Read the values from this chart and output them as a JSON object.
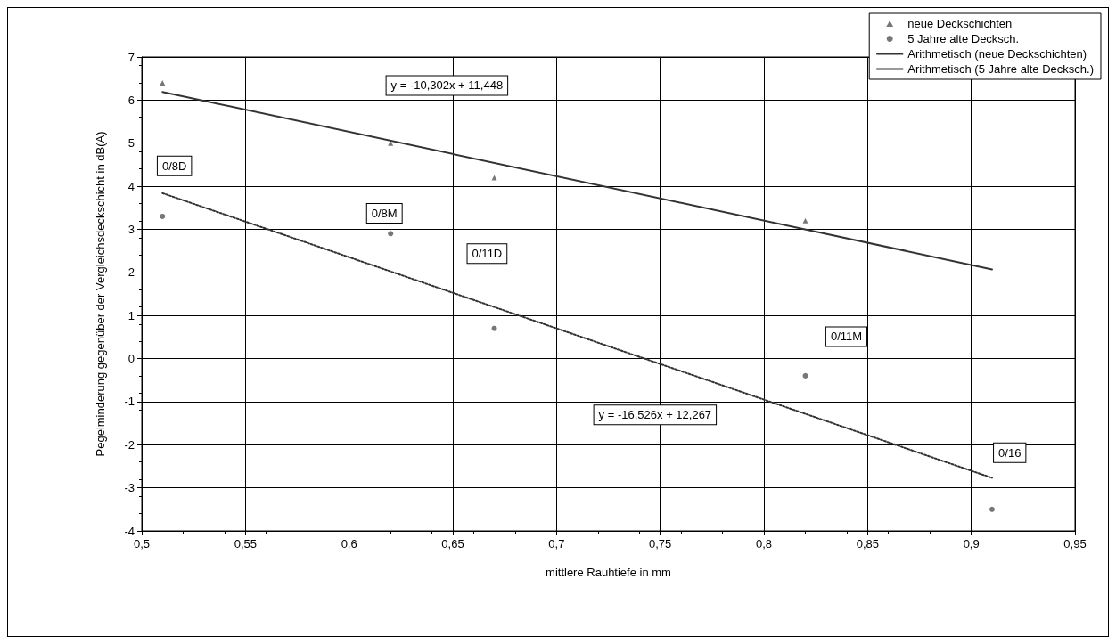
{
  "chart_data": {
    "type": "scatter",
    "xlabel": "mittlere Rauhtiefe in mm",
    "ylabel": "Pegelminderung gegenüber der Vergleichsdeckschicht in dB(A)",
    "xlim": [
      0.5,
      0.95
    ],
    "xticks": [
      {
        "value": 0.5,
        "label": "0,5"
      },
      {
        "value": 0.55,
        "label": "0,55"
      },
      {
        "value": 0.6,
        "label": "0,6"
      },
      {
        "value": 0.65,
        "label": "0,65"
      },
      {
        "value": 0.7,
        "label": "0,7"
      },
      {
        "value": 0.75,
        "label": "0,75"
      },
      {
        "value": 0.8,
        "label": "0,8"
      },
      {
        "value": 0.85,
        "label": "0,85"
      },
      {
        "value": 0.9,
        "label": "0,9"
      },
      {
        "value": 0.95,
        "label": "0,95"
      }
    ],
    "ylim": [
      -4,
      7
    ],
    "yticks": [
      -4,
      -3,
      -2,
      -1,
      0,
      1,
      2,
      3,
      4,
      5,
      6,
      7
    ],
    "grid": true,
    "legend": "top right",
    "series": [
      {
        "name": "neue Deckschichten",
        "marker": "triangle",
        "color": "#555555",
        "x": [
          0.51,
          0.62,
          0.67,
          0.82
        ],
        "values": [
          6.4,
          5.0,
          4.2,
          3.2
        ]
      },
      {
        "name": "5 Jahre alte Decksch.",
        "marker": "circle",
        "color": "#555555",
        "x": [
          0.51,
          0.62,
          0.67,
          0.82,
          0.91
        ],
        "values": [
          3.3,
          2.9,
          0.7,
          -0.4,
          -3.5
        ]
      },
      {
        "name": "Arithmetisch (neue Deckschichten)",
        "type": "line",
        "line_style": "solid",
        "color": "#333333",
        "x": [
          0.51,
          0.91
        ],
        "values": [
          6.19,
          2.07
        ]
      },
      {
        "name": "Arithmetisch (5 Jahre alte Decksch.)",
        "type": "line",
        "line_style": "dotted",
        "color": "#333333",
        "x": [
          0.51,
          0.91
        ],
        "values": [
          3.84,
          -2.77
        ]
      }
    ],
    "annotations": [
      "y = -10,302x + 11,448",
      "y = -16,526x + 12,267",
      "0/8D",
      "0/8M",
      "0/11D",
      "0/11M",
      "0/16"
    ]
  }
}
